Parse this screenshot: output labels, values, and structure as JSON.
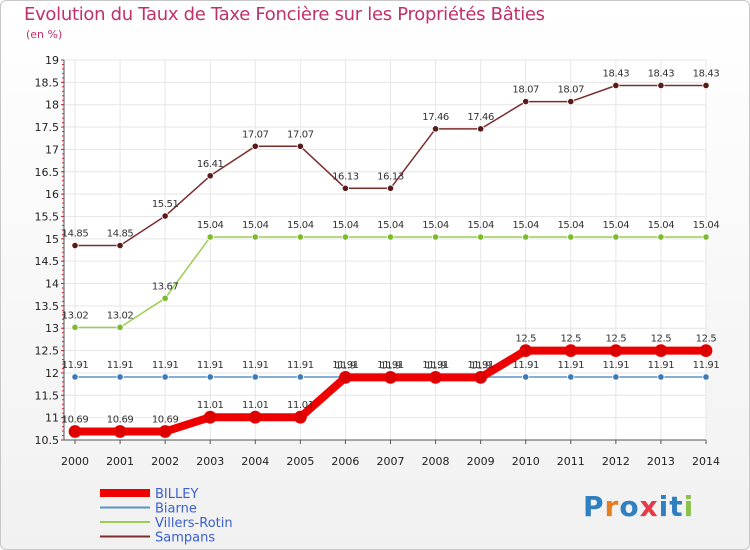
{
  "header": {
    "title": "Evolution du Taux de Taxe Foncière sur les Propriétés Bâties",
    "subtitle": "(en %)"
  },
  "logo": {
    "text": "Proxiti",
    "letters": [
      "P",
      "r",
      "o",
      "x",
      "i",
      "t",
      "i"
    ],
    "colors": [
      "#2f7fc1",
      "#e67e22",
      "#2f7fc1",
      "#e63946",
      "#2f7fc1",
      "#2f7fc1",
      "#8bc34a"
    ]
  },
  "chart_data": {
    "type": "line",
    "title": "Evolution du Taux de Taxe Foncière sur les Propriétés Bâties",
    "ylabel": "(en %)",
    "xlabel": "",
    "x": [
      "2000",
      "2001",
      "2002",
      "2003",
      "2004",
      "2005",
      "2006",
      "2007",
      "2008",
      "2009",
      "2010",
      "2011",
      "2012",
      "2013",
      "2014"
    ],
    "ylim": [
      10.5,
      19
    ],
    "yticks": [
      "10.5",
      "11",
      "11.5",
      "12",
      "12.5",
      "13",
      "13.5",
      "14",
      "14.5",
      "15",
      "15.5",
      "16",
      "16.5",
      "17",
      "17.5",
      "18",
      "18.5",
      "19"
    ],
    "grid": true,
    "legend_position": "bottom-left",
    "series": [
      {
        "name": "Sampans",
        "color": "#7b2d2d",
        "point": "#5a1a1a",
        "values": [
          14.85,
          14.85,
          15.51,
          16.41,
          17.07,
          17.07,
          16.13,
          16.13,
          17.46,
          17.46,
          18.07,
          18.07,
          18.43,
          18.43,
          18.43
        ],
        "labels": [
          "14.85",
          "14.85",
          "15.51",
          "16.41",
          "17.07",
          "17.07",
          "16.13",
          "16.13",
          "17.46",
          "17.46",
          "18.07",
          "18.07",
          "18.43",
          "18.43",
          "18.43"
        ]
      },
      {
        "name": "Villers-Rotin",
        "color": "#9acd50",
        "point": "#7cbb2e",
        "values": [
          13.02,
          13.02,
          13.67,
          15.04,
          15.04,
          15.04,
          15.04,
          15.04,
          15.04,
          15.04,
          15.04,
          15.04,
          15.04,
          15.04,
          15.04
        ],
        "labels": [
          "13.02",
          "13.02",
          "13.67",
          "15.04",
          "15.04",
          "15.04",
          "15.04",
          "15.04",
          "15.04",
          "15.04",
          "15.04",
          "15.04",
          "15.04",
          "15.04",
          "15.04"
        ]
      },
      {
        "name": "Biarne",
        "color": "#5b94c7",
        "point": "#3d7ab8",
        "values": [
          11.91,
          11.91,
          11.91,
          11.91,
          11.91,
          11.91,
          11.91,
          11.91,
          11.91,
          11.91,
          11.91,
          11.91,
          11.91,
          11.91,
          11.91
        ],
        "labels": [
          "11.91",
          "11.91",
          "11.91",
          "11.91",
          "11.91",
          "11.91",
          "11.91",
          "11.91",
          "11.91",
          "11.91",
          "11.91",
          "11.91",
          "11.91",
          "11.91",
          "11.91"
        ]
      },
      {
        "name": "BILLEY",
        "color": "#ee0000",
        "point": "#dd0000",
        "values": [
          10.69,
          10.69,
          10.69,
          11.01,
          11.01,
          11.01,
          11.9,
          11.9,
          11.9,
          11.9,
          12.5,
          12.5,
          12.5,
          12.5,
          12.5
        ],
        "labels": [
          "10.69",
          "10.69",
          "10.69",
          "11.01",
          "11.01",
          "11.01",
          "11.9",
          "11.9",
          "11.9",
          "11.9",
          "12.5",
          "12.5",
          "12.5",
          "12.5",
          "12.5"
        ]
      }
    ],
    "legend": [
      "BILLEY",
      "Biarne",
      "Villers-Rotin",
      "Sampans"
    ]
  }
}
